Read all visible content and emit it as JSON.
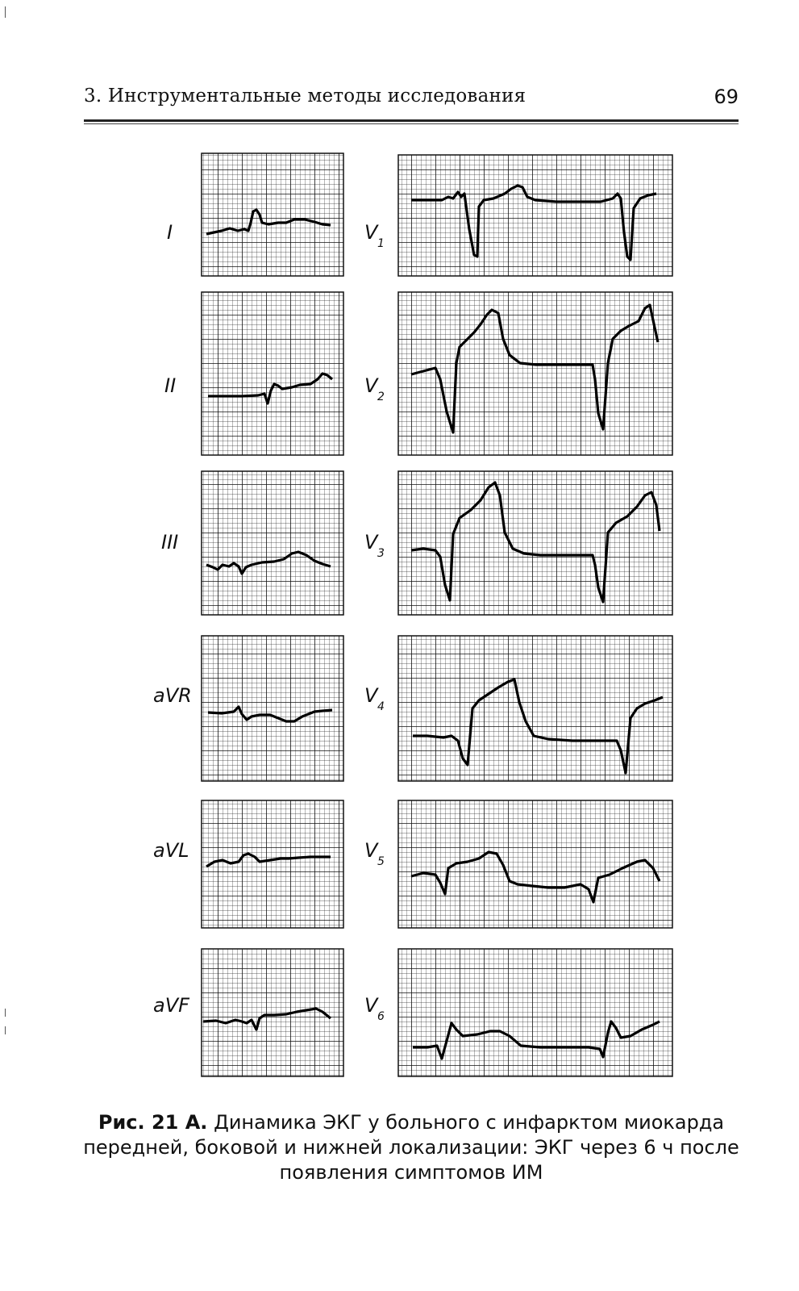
{
  "header": {
    "title": "3. Инструментальные методы исследования",
    "page_number": "69"
  },
  "figure": {
    "leads_left": [
      {
        "name": "I",
        "sub": ""
      },
      {
        "name": "II",
        "sub": ""
      },
      {
        "name": "III",
        "sub": ""
      },
      {
        "name": "aVR",
        "sub": ""
      },
      {
        "name": "aVL",
        "sub": ""
      },
      {
        "name": "aVF",
        "sub": ""
      }
    ],
    "leads_right": [
      {
        "name": "V",
        "sub": "1"
      },
      {
        "name": "V",
        "sub": "2"
      },
      {
        "name": "V",
        "sub": "3"
      },
      {
        "name": "V",
        "sub": "4"
      },
      {
        "name": "V",
        "sub": "5"
      },
      {
        "name": "V",
        "sub": "6"
      }
    ]
  },
  "caption": {
    "label": "Рис. 21 А.",
    "text": "Динамика ЭКГ у больного с инфарктом миокарда передней, боковой и нижней локализации: ЭКГ через 6 ч после появления симптомов ИМ"
  }
}
